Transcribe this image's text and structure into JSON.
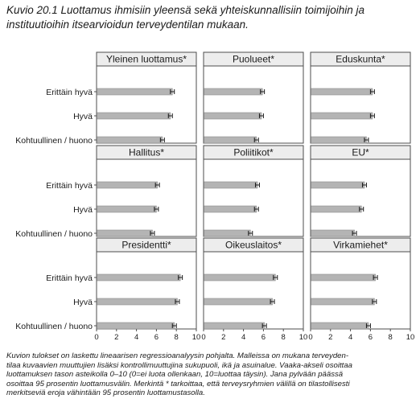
{
  "title_lines": [
    "Kuvio 20.1 Luottamus ihmisiin yleensä sekä yhteiskunnallisiin toimijoihin ja",
    "instituutioihin itsearvioidun terveydentilan mukaan."
  ],
  "caption_lines": [
    "Kuvion tulokset on laskettu lineaarisen regressioanalyysin pohjalta. Malleissa on mukana terveyden-",
    "tilaa kuvaavien muuttujien lisäksi kontrollimuuttujina sukupuoli, ikä ja asuinalue. Vaaka-akseli osoittaa",
    "luottamuksen tason asteikolla 0–10 (0=ei luota ollenkaan, 10=luottaa täysin). Jana pylvään päässä",
    "osoittaa 95 prosentin luottamusvälin. Merkintä * tarkoittaa, että terveysryhmien välillä on tilastollisesti",
    "merkitseviä eroja vähintään 95 prosentin luottamustasolla."
  ],
  "colors": {
    "bar": "#b4b4b4",
    "bar_edge": "#8c8c8c",
    "frame": "#4d4d4d",
    "strip": "#ededed",
    "errorbar": "#1a1a1a"
  },
  "chart_data": {
    "type": "bar",
    "orientation": "horizontal",
    "categories": [
      "Erittäin hyvä",
      "Hyvä",
      "Kohtuullinen / huono"
    ],
    "xlim": [
      0,
      10
    ],
    "xticks": [
      "0",
      "2",
      "4",
      "6",
      "8",
      "10"
    ],
    "grid": false,
    "panels": [
      {
        "name": "Yleinen luottamus*",
        "values": [
          7.6,
          7.4,
          6.6
        ],
        "ci_low": [
          7.4,
          7.2,
          6.4
        ],
        "ci_high": [
          7.8,
          7.6,
          6.8
        ]
      },
      {
        "name": "Puolueet*",
        "values": [
          5.9,
          5.8,
          5.3
        ],
        "ci_low": [
          5.7,
          5.6,
          5.1
        ],
        "ci_high": [
          6.1,
          6.0,
          5.5
        ]
      },
      {
        "name": "Eduskunta*",
        "values": [
          6.2,
          6.2,
          5.6
        ],
        "ci_low": [
          6.0,
          6.0,
          5.4
        ],
        "ci_high": [
          6.4,
          6.4,
          5.8
        ]
      },
      {
        "name": "Hallitus*",
        "values": [
          6.1,
          6.0,
          5.6
        ],
        "ci_low": [
          5.9,
          5.8,
          5.4
        ],
        "ci_high": [
          6.3,
          6.2,
          5.8
        ]
      },
      {
        "name": "Poliitikot*",
        "values": [
          5.4,
          5.3,
          4.7
        ],
        "ci_low": [
          5.2,
          5.1,
          4.5
        ],
        "ci_high": [
          5.6,
          5.5,
          4.9
        ]
      },
      {
        "name": "EU*",
        "values": [
          5.4,
          5.1,
          4.4
        ],
        "ci_low": [
          5.2,
          4.9,
          4.2
        ],
        "ci_high": [
          5.6,
          5.3,
          4.6
        ]
      },
      {
        "name": "Presidentti*",
        "values": [
          8.4,
          8.1,
          7.8
        ],
        "ci_low": [
          8.2,
          7.9,
          7.6
        ],
        "ci_high": [
          8.6,
          8.3,
          8.0
        ]
      },
      {
        "name": "Oikeuslaitos*",
        "values": [
          7.2,
          6.9,
          6.1
        ],
        "ci_low": [
          7.0,
          6.7,
          5.9
        ],
        "ci_high": [
          7.4,
          7.1,
          6.3
        ]
      },
      {
        "name": "Virkamiehet*",
        "values": [
          6.5,
          6.4,
          5.8
        ],
        "ci_low": [
          6.3,
          6.2,
          5.6
        ],
        "ci_high": [
          6.7,
          6.6,
          6.0
        ]
      }
    ]
  }
}
